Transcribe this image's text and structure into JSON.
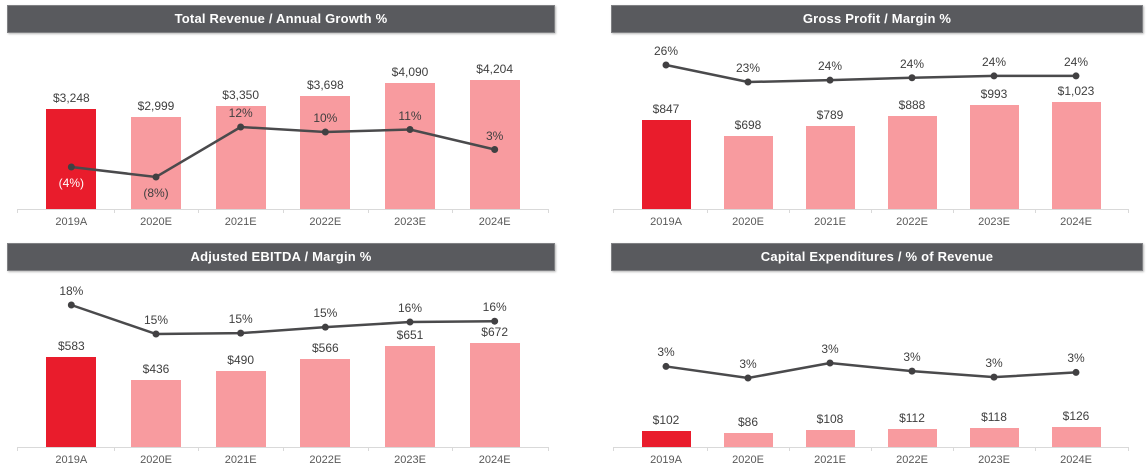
{
  "page": {
    "background": "#ffffff"
  },
  "colors": {
    "header_bg": "#595a5e",
    "header_text": "#ffffff",
    "bar_actual": "#e91c2c",
    "bar_estimate": "#f89b9f",
    "trend_line": "#4a4a4c",
    "marker": "#414042",
    "data_label": "#3f3f3f",
    "negative_label_on_actual_bar": "#ffffff",
    "axis_label": "#595959",
    "axis_line": "#d9d9d9"
  },
  "chart_data": [
    {
      "id": "total-revenue",
      "type": "bar+line",
      "title": "Total Revenue / Annual Growth %",
      "categories": [
        "2019A",
        "2020E",
        "2021E",
        "2022E",
        "2023E",
        "2024E"
      ],
      "bar_series": {
        "name": "Total Revenue",
        "values": [
          3248,
          2999,
          3350,
          3698,
          4090,
          4204
        ],
        "labels": [
          "$3,248",
          "$2,999",
          "$3,350",
          "$3,698",
          "$4,090",
          "$4,204"
        ]
      },
      "line_series": {
        "name": "Annual Growth %",
        "values": [
          -4,
          -8,
          12,
          10,
          11,
          3
        ],
        "labels": [
          "(4%)",
          "(8%)",
          "12%",
          "10%",
          "11%",
          "3%"
        ]
      },
      "legend": "off",
      "grid": "off",
      "ylim": [
        0,
        4204
      ]
    },
    {
      "id": "gross-profit",
      "type": "bar+line",
      "title": "Gross Profit / Margin %",
      "categories": [
        "2019A",
        "2020E",
        "2021E",
        "2022E",
        "2023E",
        "2024E"
      ],
      "bar_series": {
        "name": "Gross Profit",
        "values": [
          847,
          698,
          789,
          888,
          993,
          1023
        ],
        "labels": [
          "$847",
          "$698",
          "$789",
          "$888",
          "$993",
          "$1,023"
        ]
      },
      "line_series": {
        "name": "Margin %",
        "values": [
          26.1,
          23.3,
          23.6,
          24.0,
          24.3,
          24.3
        ],
        "labels": [
          "26%",
          "23%",
          "24%",
          "24%",
          "24%",
          "24%"
        ]
      },
      "legend": "off",
      "grid": "off",
      "ylim": [
        0,
        1023
      ]
    },
    {
      "id": "adjusted-ebitda",
      "type": "bar+line",
      "title": "Adjusted EBITDA / Margin %",
      "categories": [
        "2019A",
        "2020E",
        "2021E",
        "2022E",
        "2023E",
        "2024E"
      ],
      "bar_series": {
        "name": "Adjusted EBITDA",
        "values": [
          583,
          436,
          490,
          566,
          651,
          672
        ],
        "labels": [
          "$583",
          "$436",
          "$490",
          "$566",
          "$651",
          "$672"
        ]
      },
      "line_series": {
        "name": "Margin %",
        "values": [
          17.9,
          14.5,
          14.6,
          15.3,
          15.9,
          16.0
        ],
        "labels": [
          "18%",
          "15%",
          "15%",
          "15%",
          "16%",
          "16%"
        ]
      },
      "legend": "off",
      "grid": "off",
      "ylim": [
        0,
        672
      ]
    },
    {
      "id": "capital-expenditures",
      "type": "bar+line",
      "title": "Capital Expenditures / % of Revenue",
      "categories": [
        "2019A",
        "2020E",
        "2021E",
        "2022E",
        "2023E",
        "2024E"
      ],
      "bar_series": {
        "name": "Capital Expenditures",
        "values": [
          102,
          86,
          108,
          112,
          118,
          126
        ],
        "labels": [
          "$102",
          "$86",
          "$108",
          "$112",
          "$118",
          "$126"
        ]
      },
      "line_series": {
        "name": "% of Revenue",
        "values": [
          3.14,
          2.87,
          3.22,
          3.03,
          2.89,
          3.0
        ],
        "labels": [
          "3%",
          "3%",
          "3%",
          "3%",
          "3%",
          "3%"
        ]
      },
      "legend": "off",
      "grid": "off",
      "ylim": [
        0,
        126
      ]
    }
  ]
}
